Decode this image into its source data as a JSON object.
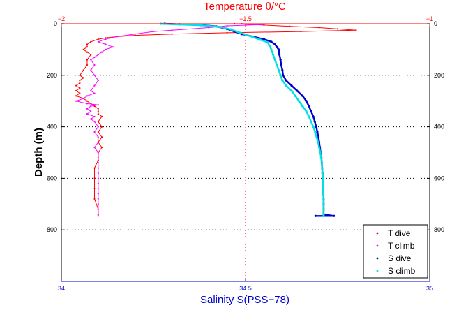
{
  "chart_data": {
    "type": "scatter",
    "top_axis": {
      "title": "Temperature θ/°C",
      "range": [
        -2,
        -1
      ],
      "ticks": [
        -2,
        -1.5,
        -1
      ],
      "tick_labels": [
        "−2",
        "−1.5",
        "−1"
      ],
      "color": "#ff0000"
    },
    "bottom_axis": {
      "title": "Salinity S(PSS−78)",
      "range": [
        34,
        35
      ],
      "ticks": [
        34,
        34.5,
        35
      ],
      "tick_labels": [
        "34",
        "34.5",
        "35"
      ],
      "color": "#0000cc"
    },
    "y_axis": {
      "title": "Depth (m)",
      "range": [
        0,
        1000
      ],
      "inverted": true,
      "ticks": [
        0,
        200,
        400,
        600,
        800
      ],
      "tick_labels": [
        "0",
        "200",
        "400",
        "600",
        "800"
      ]
    },
    "grid": true,
    "legend_position": "bottom-right",
    "series": [
      {
        "name": "T dive",
        "axis": "top",
        "color": "#ff0000",
        "points": [
          [
            -1.53,
            0
          ],
          [
            -1.45,
            5
          ],
          [
            -1.38,
            10
          ],
          [
            -1.3,
            15
          ],
          [
            -1.25,
            20
          ],
          [
            -1.2,
            25
          ],
          [
            -1.35,
            30
          ],
          [
            -1.55,
            35
          ],
          [
            -1.7,
            40
          ],
          [
            -1.8,
            45
          ],
          [
            -1.85,
            50
          ],
          [
            -1.88,
            55
          ],
          [
            -1.9,
            60
          ],
          [
            -1.92,
            70
          ],
          [
            -1.93,
            80
          ],
          [
            -1.93,
            90
          ],
          [
            -1.94,
            100
          ],
          [
            -1.93,
            110
          ],
          [
            -1.92,
            120
          ],
          [
            -1.93,
            140
          ],
          [
            -1.93,
            160
          ],
          [
            -1.94,
            180
          ],
          [
            -1.95,
            200
          ],
          [
            -1.94,
            210
          ],
          [
            -1.95,
            220
          ],
          [
            -1.95,
            230
          ],
          [
            -1.96,
            240
          ],
          [
            -1.95,
            250
          ],
          [
            -1.96,
            260
          ],
          [
            -1.95,
            270
          ],
          [
            -1.96,
            280
          ],
          [
            -1.94,
            290
          ],
          [
            -1.93,
            300
          ],
          [
            -1.92,
            310
          ],
          [
            -1.91,
            320
          ],
          [
            -1.9,
            330
          ],
          [
            -1.9,
            340
          ],
          [
            -1.9,
            350
          ],
          [
            -1.89,
            360
          ],
          [
            -1.9,
            380
          ],
          [
            -1.89,
            400
          ],
          [
            -1.9,
            420
          ],
          [
            -1.89,
            440
          ],
          [
            -1.9,
            460
          ],
          [
            -1.89,
            480
          ],
          [
            -1.9,
            500
          ],
          [
            -1.9,
            530
          ],
          [
            -1.91,
            560
          ],
          [
            -1.91,
            600
          ],
          [
            -1.91,
            640
          ],
          [
            -1.91,
            680
          ],
          [
            -1.9,
            720
          ],
          [
            -1.9,
            740
          ],
          [
            -1.9,
            746
          ]
        ]
      },
      {
        "name": "T climb",
        "axis": "top",
        "color": "#ff00ff",
        "points": [
          [
            -1.51,
            0
          ],
          [
            -1.45,
            3
          ],
          [
            -1.55,
            8
          ],
          [
            -1.6,
            15
          ],
          [
            -1.7,
            25
          ],
          [
            -1.75,
            30
          ],
          [
            -1.8,
            40
          ],
          [
            -1.85,
            50
          ],
          [
            -1.88,
            60
          ],
          [
            -1.9,
            70
          ],
          [
            -1.88,
            80
          ],
          [
            -1.86,
            90
          ],
          [
            -1.88,
            100
          ],
          [
            -1.89,
            110
          ],
          [
            -1.9,
            120
          ],
          [
            -1.91,
            130
          ],
          [
            -1.92,
            140
          ],
          [
            -1.91,
            160
          ],
          [
            -1.92,
            180
          ],
          [
            -1.91,
            200
          ],
          [
            -1.9,
            220
          ],
          [
            -1.91,
            240
          ],
          [
            -1.92,
            260
          ],
          [
            -1.91,
            270
          ],
          [
            -1.93,
            280
          ],
          [
            -1.94,
            290
          ],
          [
            -1.96,
            300
          ],
          [
            -1.93,
            310
          ],
          [
            -1.9,
            315
          ],
          [
            -1.92,
            320
          ],
          [
            -1.93,
            330
          ],
          [
            -1.92,
            340
          ],
          [
            -1.93,
            350
          ],
          [
            -1.91,
            360
          ],
          [
            -1.92,
            370
          ],
          [
            -1.91,
            380
          ],
          [
            -1.9,
            400
          ],
          [
            -1.91,
            420
          ],
          [
            -1.9,
            440
          ],
          [
            -1.9,
            460
          ],
          [
            -1.91,
            480
          ],
          [
            -1.9,
            500
          ],
          [
            -1.9,
            520
          ],
          [
            -1.9,
            540
          ],
          [
            -1.9,
            560
          ],
          [
            -1.9,
            580
          ],
          [
            -1.9,
            600
          ],
          [
            -1.9,
            620
          ],
          [
            -1.9,
            640
          ],
          [
            -1.9,
            660
          ],
          [
            -1.9,
            680
          ],
          [
            -1.9,
            700
          ],
          [
            -1.9,
            720
          ],
          [
            -1.9,
            740
          ],
          [
            -1.9,
            746
          ]
        ]
      },
      {
        "name": "S dive",
        "axis": "bottom",
        "color": "#0000cc",
        "points": [
          [
            34.28,
            0
          ],
          [
            34.32,
            2
          ],
          [
            34.38,
            5
          ],
          [
            34.42,
            10
          ],
          [
            34.45,
            20
          ],
          [
            34.47,
            30
          ],
          [
            34.49,
            40
          ],
          [
            34.52,
            50
          ],
          [
            34.55,
            60
          ],
          [
            34.57,
            70
          ],
          [
            34.58,
            80
          ],
          [
            34.585,
            90
          ],
          [
            34.59,
            100
          ],
          [
            34.592,
            120
          ],
          [
            34.595,
            140
          ],
          [
            34.597,
            160
          ],
          [
            34.6,
            180
          ],
          [
            34.602,
            200
          ],
          [
            34.61,
            220
          ],
          [
            34.625,
            240
          ],
          [
            34.64,
            260
          ],
          [
            34.655,
            280
          ],
          [
            34.665,
            300
          ],
          [
            34.672,
            320
          ],
          [
            34.678,
            340
          ],
          [
            34.684,
            360
          ],
          [
            34.688,
            380
          ],
          [
            34.692,
            400
          ],
          [
            34.695,
            420
          ],
          [
            34.698,
            440
          ],
          [
            34.7,
            460
          ],
          [
            34.702,
            480
          ],
          [
            34.704,
            500
          ],
          [
            34.706,
            520
          ],
          [
            34.707,
            540
          ],
          [
            34.708,
            560
          ],
          [
            34.709,
            580
          ],
          [
            34.71,
            600
          ],
          [
            34.71,
            620
          ],
          [
            34.711,
            640
          ],
          [
            34.711,
            660
          ],
          [
            34.712,
            680
          ],
          [
            34.712,
            700
          ],
          [
            34.712,
            720
          ],
          [
            34.712,
            740
          ],
          [
            34.74,
            746
          ],
          [
            34.69,
            746
          ]
        ]
      },
      {
        "name": "S climb",
        "axis": "bottom",
        "color": "#00e0e0",
        "points": [
          [
            34.27,
            0
          ],
          [
            34.32,
            3
          ],
          [
            34.38,
            6
          ],
          [
            34.43,
            12
          ],
          [
            34.46,
            22
          ],
          [
            34.48,
            32
          ],
          [
            34.5,
            42
          ],
          [
            34.52,
            52
          ],
          [
            34.54,
            62
          ],
          [
            34.56,
            72
          ],
          [
            34.565,
            85
          ],
          [
            34.57,
            100
          ],
          [
            34.575,
            120
          ],
          [
            34.58,
            140
          ],
          [
            34.585,
            160
          ],
          [
            34.59,
            180
          ],
          [
            34.595,
            200
          ],
          [
            34.6,
            220
          ],
          [
            34.61,
            240
          ],
          [
            34.625,
            260
          ],
          [
            34.635,
            280
          ],
          [
            34.645,
            300
          ],
          [
            34.655,
            320
          ],
          [
            34.665,
            340
          ],
          [
            34.672,
            360
          ],
          [
            34.678,
            380
          ],
          [
            34.684,
            400
          ],
          [
            34.689,
            420
          ],
          [
            34.693,
            440
          ],
          [
            34.697,
            460
          ],
          [
            34.7,
            480
          ],
          [
            34.703,
            500
          ],
          [
            34.705,
            520
          ],
          [
            34.707,
            540
          ],
          [
            34.708,
            560
          ],
          [
            34.709,
            580
          ],
          [
            34.71,
            600
          ],
          [
            34.71,
            620
          ],
          [
            34.711,
            640
          ],
          [
            34.711,
            660
          ],
          [
            34.712,
            680
          ],
          [
            34.712,
            700
          ],
          [
            34.712,
            720
          ],
          [
            34.712,
            740
          ],
          [
            34.712,
            746
          ]
        ]
      }
    ]
  }
}
